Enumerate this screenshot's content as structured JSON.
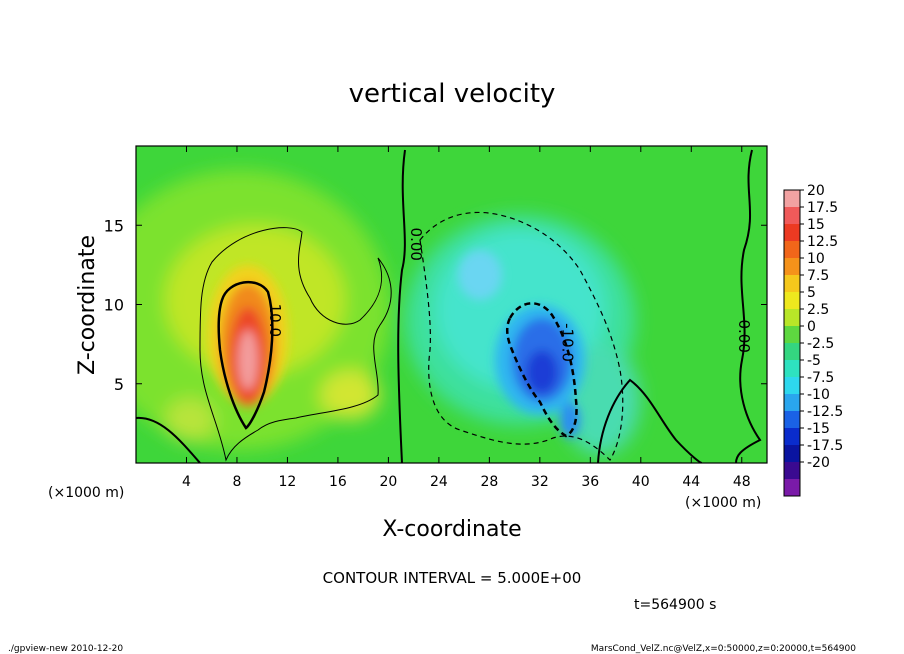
{
  "chart_data": {
    "type": "heatmap",
    "title": "vertical velocity",
    "xlabel": "X-coordinate",
    "ylabel": "Z-coordinate",
    "x_unit_left": "(×1000 m)",
    "x_unit_right": "(×1000 m)",
    "xlim": [
      0,
      50
    ],
    "ylim": [
      0,
      20
    ],
    "x_ticks": [
      4,
      8,
      12,
      16,
      20,
      24,
      28,
      32,
      36,
      40,
      44,
      48
    ],
    "y_ticks": [
      5,
      10,
      15
    ],
    "colorbar_levels": [
      "20",
      "17.5",
      "15",
      "12.5",
      "10",
      "7.5",
      "5",
      "2.5",
      "0",
      "-2.5",
      "-5",
      "-7.5",
      "-10",
      "-12.5",
      "-15",
      "-17.5",
      "-20"
    ],
    "colorbar_colors": [
      "#f2a2a2",
      "#f05a5a",
      "#ec3a22",
      "#f1661a",
      "#f5921a",
      "#f5c81c",
      "#eee81e",
      "#b8e628",
      "#5ed840",
      "#34d680",
      "#2ee2c0",
      "#2ed8ee",
      "#2aa6ee",
      "#1a62e6",
      "#0a2ccc",
      "#0a14a0",
      "#3a0a90",
      "#7a1aa8"
    ],
    "contour_labels": [
      {
        "text": "10.0",
        "x": 10.6,
        "y": 9.0
      },
      {
        "text": "0.00",
        "x": 21.8,
        "y": 13.8
      },
      {
        "text": "-10.0",
        "x": 33.8,
        "y": 7.6
      },
      {
        "text": "0.00",
        "x": 47.8,
        "y": 8.0
      }
    ],
    "features": [
      {
        "sign": "positive",
        "center": [
          9,
          6.8
        ],
        "max": 20
      },
      {
        "sign": "negative",
        "center": [
          32,
          6.5
        ],
        "min": -12.5
      }
    ],
    "contour_interval_text": "CONTOUR INTERVAL = 5.000E+00",
    "time_text": "t=564900  s"
  },
  "footer": {
    "left": "./gpview-new   2010-12-20",
    "right": "MarsCond_VelZ.nc@VelZ,x=0:50000,z=0:20000,t=564900"
  }
}
